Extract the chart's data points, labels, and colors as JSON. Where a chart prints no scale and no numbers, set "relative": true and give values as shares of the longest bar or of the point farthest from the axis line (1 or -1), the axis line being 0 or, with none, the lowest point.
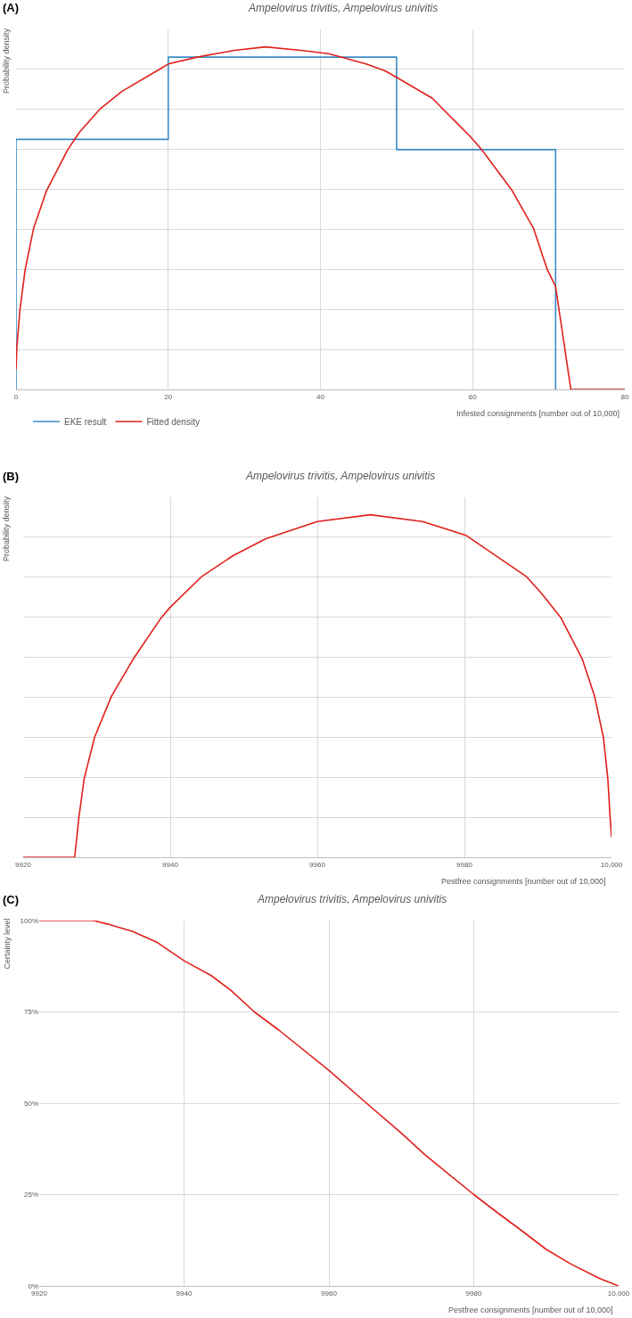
{
  "chart_data": [
    {
      "type": "line",
      "title": "Ampelovirus trivitis, Ampelovirus univitis",
      "xlabel": "Infested consignments [number out of 10,000]",
      "ylabel": "Probability density",
      "annotations": [
        "(A)"
      ],
      "relative": true,
      "xlim": [
        0,
        80
      ],
      "xticks": [
        0,
        20,
        40,
        60,
        80
      ],
      "grid": true,
      "legend": "bottom left",
      "series": [
        {
          "name": "EKE result",
          "type": "step",
          "color": "#3b8bc6",
          "x": [
            0,
            0,
            20,
            50,
            70.9
          ],
          "values": [
            0,
            0.73,
            0.97,
            0.7,
            0
          ]
        },
        {
          "name": "Fitted density",
          "type": "line",
          "color": "#e0201b",
          "x": [
            0,
            0.1,
            0.5,
            1.2,
            2.3,
            4,
            6.8,
            8.3,
            11.1,
            13.9,
            18.5,
            20,
            23.8,
            28.7,
            32.8,
            37.4,
            41.1,
            46,
            48.5,
            50.1,
            54.7,
            59.6,
            61.2,
            65.2,
            68,
            69.8,
            70.9,
            71.3,
            72.1,
            72.9,
            80
          ],
          "values": [
            0.06,
            0.12,
            0.23,
            0.35,
            0.47,
            0.58,
            0.7,
            0.75,
            0.82,
            0.87,
            0.93,
            0.95,
            0.97,
            0.99,
            1,
            0.99,
            0.98,
            0.95,
            0.93,
            0.91,
            0.85,
            0.74,
            0.7,
            0.58,
            0.47,
            0.35,
            0.3,
            0.24,
            0.12,
            0,
            0
          ]
        }
      ]
    },
    {
      "type": "line",
      "title": "Ampelovirus trivitis, Ampelovirus univitis",
      "xlabel": "Pestfree consignments [number out of 10,000]",
      "ylabel": "Probability density",
      "annotations": [
        "(B)"
      ],
      "relative": true,
      "xlim": [
        9920,
        10000
      ],
      "xticks": [
        9920,
        9940,
        9960,
        9980,
        {
          "value": 10000,
          "label": "10,000"
        }
      ],
      "grid": true,
      "series": [
        {
          "color": "#e0201b",
          "x": [
            9920,
            9927,
            9927.6,
            9928.3,
            9929.7,
            9932,
            9935,
            9938.8,
            9940,
            9944.3,
            9948.5,
            9953,
            9960,
            9967.2,
            9974.3,
            9980.2,
            9988.4,
            9990.5,
            9993.1,
            9996,
            9997.7,
            9998.9,
            9999.5,
            9999.8,
            10000
          ],
          "values": [
            0,
            0,
            0.12,
            0.23,
            0.35,
            0.47,
            0.58,
            0.7,
            0.73,
            0.82,
            0.88,
            0.93,
            0.98,
            1,
            0.98,
            0.94,
            0.82,
            0.77,
            0.7,
            0.58,
            0.47,
            0.35,
            0.23,
            0.12,
            0.06
          ]
        }
      ]
    },
    {
      "type": "line",
      "title": "Ampelovirus trivitis, Ampelovirus univitis",
      "xlabel": "Pestfree consignments [number out of 10,000]",
      "ylabel": "Certainty level",
      "annotations": [
        "(C)"
      ],
      "xlim": [
        9920,
        10000
      ],
      "xticks": [
        9920,
        9940,
        9960,
        9980,
        {
          "value": 10000,
          "label": "10,000"
        }
      ],
      "ylim": [
        0,
        100
      ],
      "yticks": [
        {
          "value": 0,
          "label": "0%"
        },
        {
          "value": 25,
          "label": "25%"
        },
        {
          "value": 50,
          "label": "50%"
        },
        {
          "value": 75,
          "label": "75%"
        },
        {
          "value": 100,
          "label": "100%"
        }
      ],
      "grid": true,
      "series": [
        {
          "color": "#e0201b",
          "x": [
            9920,
            9927.5,
            9929.5,
            9932.9,
            9936.3,
            9940,
            9943.7,
            9946.4,
            9949.7,
            9953.1,
            9960,
            9965.2,
            9969.9,
            9973.2,
            9980,
            9983.3,
            9986.7,
            9990,
            9993.4,
            9997.4,
            10000
          ],
          "values": [
            100,
            100,
            99,
            97,
            94,
            89,
            85,
            81,
            75,
            70,
            59,
            50,
            42,
            36,
            25,
            20,
            15,
            10,
            6,
            2,
            0
          ]
        }
      ]
    }
  ]
}
